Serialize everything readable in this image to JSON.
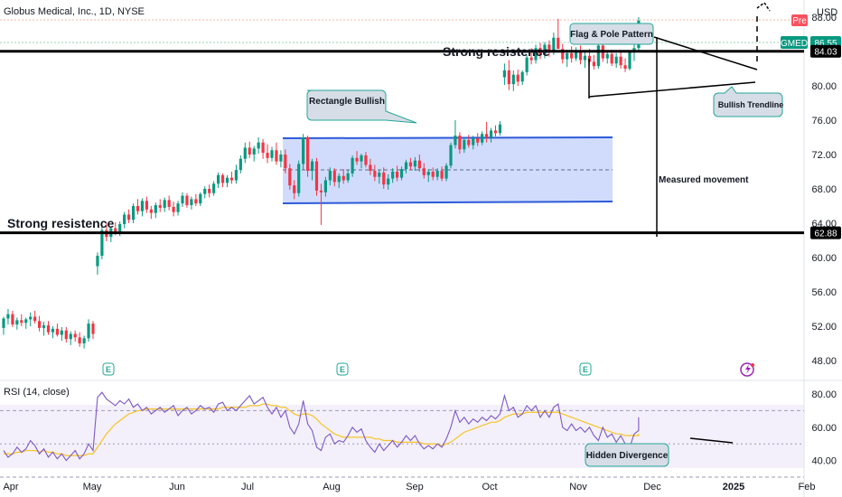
{
  "chart_data": {
    "type": "candlestick",
    "title": "Globus Medical, Inc., 1D, NYSE",
    "currency": "USD",
    "ticker_tag": "GMED",
    "last_price": "86.55",
    "pre_label": "Pre",
    "ylim": [
      46,
      90
    ],
    "y_ticks": [
      "88.00",
      "84.00",
      "80.00",
      "76.00",
      "72.00",
      "68.00",
      "64.00",
      "60.00",
      "56.00",
      "52.00",
      "48.00"
    ],
    "x_months": [
      "Apr",
      "May",
      "Jun",
      "Jul",
      "Aug",
      "Sep",
      "Oct",
      "Nov",
      "Dec",
      "2025",
      "Feb"
    ],
    "resistance_levels": [
      {
        "value": 84.03,
        "label": "84.03",
        "text": "Strong resistence"
      },
      {
        "value": 62.88,
        "label": "62.88",
        "text": "Strong resistence"
      }
    ],
    "annotations": {
      "flag_pole": "Flag & Pole Pattern",
      "rectangle": "Rectangle Bullish",
      "trendline": "Bullish Trendline",
      "measured": "Measured movement",
      "divergence": "Hidden Divergence"
    },
    "candles": [
      [
        51.8,
        53.1,
        51.0,
        52.9
      ],
      [
        52.9,
        54.0,
        52.2,
        53.4
      ],
      [
        53.4,
        53.8,
        51.9,
        52.2
      ],
      [
        52.2,
        53.0,
        51.6,
        52.7
      ],
      [
        52.7,
        53.4,
        52.0,
        52.4
      ],
      [
        52.4,
        53.0,
        51.7,
        52.8
      ],
      [
        52.8,
        53.6,
        52.0,
        53.1
      ],
      [
        53.1,
        53.8,
        52.3,
        52.6
      ],
      [
        52.6,
        53.2,
        51.4,
        51.8
      ],
      [
        51.8,
        52.5,
        50.9,
        52.1
      ],
      [
        52.1,
        52.6,
        51.0,
        51.3
      ],
      [
        51.3,
        52.0,
        50.6,
        51.7
      ],
      [
        51.7,
        52.3,
        50.8,
        51.0
      ],
      [
        51.0,
        51.9,
        50.3,
        51.5
      ],
      [
        51.5,
        51.9,
        50.1,
        50.5
      ],
      [
        50.5,
        51.4,
        49.8,
        51.1
      ],
      [
        51.1,
        51.5,
        50.2,
        50.7
      ],
      [
        50.7,
        51.3,
        49.6,
        50.0
      ],
      [
        50.0,
        50.9,
        49.4,
        50.6
      ],
      [
        50.6,
        52.8,
        50.2,
        52.3
      ],
      [
        52.3,
        52.6,
        50.5,
        51.1
      ],
      [
        59.0,
        60.6,
        58.0,
        60.2
      ],
      [
        60.2,
        63.8,
        59.8,
        63.2
      ],
      [
        63.2,
        64.0,
        61.9,
        62.4
      ],
      [
        62.4,
        63.6,
        61.8,
        63.4
      ],
      [
        63.4,
        64.1,
        62.6,
        63.0
      ],
      [
        63.0,
        64.2,
        62.5,
        63.9
      ],
      [
        63.9,
        65.3,
        63.4,
        65.0
      ],
      [
        65.0,
        65.6,
        64.0,
        64.4
      ],
      [
        64.4,
        66.3,
        64.0,
        66.0
      ],
      [
        66.0,
        66.8,
        65.0,
        65.4
      ],
      [
        65.4,
        66.9,
        64.8,
        66.6
      ],
      [
        66.6,
        67.1,
        65.2,
        65.6
      ],
      [
        65.6,
        66.0,
        64.5,
        65.2
      ],
      [
        65.2,
        66.4,
        64.6,
        66.1
      ],
      [
        66.1,
        66.8,
        65.3,
        65.8
      ],
      [
        65.8,
        67.0,
        65.3,
        66.7
      ],
      [
        66.7,
        67.2,
        65.5,
        65.9
      ],
      [
        65.9,
        66.5,
        64.8,
        65.3
      ],
      [
        65.3,
        66.6,
        64.9,
        66.3
      ],
      [
        66.3,
        67.6,
        65.9,
        67.2
      ],
      [
        67.2,
        67.5,
        65.8,
        66.1
      ],
      [
        66.1,
        67.1,
        65.6,
        66.8
      ],
      [
        66.8,
        67.4,
        66.0,
        66.3
      ],
      [
        66.3,
        67.6,
        66.0,
        67.4
      ],
      [
        67.4,
        68.3,
        66.9,
        68.0
      ],
      [
        68.0,
        68.5,
        67.0,
        67.5
      ],
      [
        67.5,
        68.9,
        67.2,
        68.6
      ],
      [
        68.6,
        69.9,
        68.1,
        69.6
      ],
      [
        69.6,
        69.8,
        68.2,
        68.7
      ],
      [
        68.7,
        69.6,
        68.2,
        69.3
      ],
      [
        69.3,
        70.0,
        68.6,
        69.0
      ],
      [
        69.0,
        70.8,
        68.6,
        70.2
      ],
      [
        70.2,
        71.9,
        69.8,
        71.5
      ],
      [
        71.5,
        73.4,
        71.0,
        72.8
      ],
      [
        72.8,
        73.5,
        71.6,
        72.0
      ],
      [
        72.0,
        73.0,
        71.2,
        72.7
      ],
      [
        72.7,
        74.0,
        72.1,
        73.4
      ],
      [
        73.4,
        73.8,
        71.5,
        72.2
      ],
      [
        72.2,
        73.2,
        71.0,
        71.6
      ],
      [
        71.6,
        72.9,
        71.2,
        72.5
      ],
      [
        72.5,
        73.4,
        70.8,
        71.2
      ],
      [
        71.2,
        72.5,
        70.5,
        72.0
      ],
      [
        72.0,
        72.6,
        69.8,
        70.4
      ],
      [
        70.4,
        70.9,
        67.9,
        68.4
      ],
      [
        68.4,
        69.0,
        66.8,
        67.5
      ],
      [
        67.5,
        71.3,
        67.1,
        70.9
      ],
      [
        70.9,
        74.4,
        70.2,
        74.0
      ],
      [
        74.0,
        74.2,
        69.4,
        70.1
      ],
      [
        70.1,
        71.5,
        69.0,
        71.2
      ],
      [
        71.2,
        71.6,
        67.2,
        67.8
      ],
      [
        67.8,
        68.6,
        63.8,
        67.6
      ],
      [
        67.6,
        69.4,
        67.1,
        69.0
      ],
      [
        69.0,
        70.5,
        68.4,
        70.1
      ],
      [
        70.1,
        70.4,
        68.3,
        68.8
      ],
      [
        68.8,
        69.8,
        68.1,
        69.5
      ],
      [
        69.5,
        70.3,
        68.6,
        69.0
      ],
      [
        69.0,
        70.2,
        68.7,
        69.8
      ],
      [
        69.8,
        71.9,
        69.4,
        71.6
      ],
      [
        71.6,
        72.4,
        70.8,
        71.2
      ],
      [
        71.2,
        72.1,
        70.4,
        71.9
      ],
      [
        71.9,
        72.3,
        70.5,
        70.8
      ],
      [
        70.8,
        71.5,
        69.6,
        70.1
      ],
      [
        70.1,
        70.8,
        68.9,
        69.4
      ],
      [
        69.4,
        70.2,
        68.6,
        69.9
      ],
      [
        69.9,
        70.5,
        68.0,
        68.5
      ],
      [
        68.5,
        69.7,
        67.9,
        69.2
      ],
      [
        69.2,
        70.4,
        68.7,
        70.0
      ],
      [
        70.0,
        70.7,
        68.9,
        69.3
      ],
      [
        69.3,
        70.6,
        69.0,
        70.3
      ],
      [
        70.3,
        71.4,
        69.8,
        71.1
      ],
      [
        71.1,
        71.6,
        70.2,
        70.6
      ],
      [
        70.6,
        71.7,
        70.1,
        71.3
      ],
      [
        71.3,
        72.0,
        70.0,
        70.4
      ],
      [
        70.4,
        71.0,
        69.2,
        69.6
      ],
      [
        69.6,
        70.3,
        68.8,
        70.0
      ],
      [
        70.0,
        70.5,
        69.0,
        69.4
      ],
      [
        69.4,
        70.4,
        69.0,
        70.1
      ],
      [
        70.1,
        70.6,
        68.9,
        69.2
      ],
      [
        69.2,
        71.0,
        68.9,
        70.7
      ],
      [
        70.7,
        73.4,
        70.4,
        73.1
      ],
      [
        73.1,
        76.0,
        72.7,
        74.2
      ],
      [
        74.2,
        74.6,
        72.1,
        72.6
      ],
      [
        72.6,
        74.0,
        72.2,
        73.7
      ],
      [
        73.7,
        74.3,
        72.8,
        73.1
      ],
      [
        73.1,
        74.2,
        72.6,
        73.9
      ],
      [
        73.9,
        74.5,
        73.0,
        73.4
      ],
      [
        73.4,
        74.7,
        73.1,
        74.4
      ],
      [
        74.4,
        75.8,
        73.4,
        74.0
      ],
      [
        74.0,
        75.1,
        73.4,
        74.8
      ],
      [
        74.8,
        75.4,
        74.1,
        74.5
      ],
      [
        74.5,
        75.9,
        74.2,
        75.5
      ],
      [
        81.0,
        82.6,
        80.1,
        81.8
      ],
      [
        81.8,
        83.0,
        79.5,
        80.2
      ],
      [
        80.2,
        81.8,
        79.4,
        81.3
      ],
      [
        81.3,
        81.9,
        80.0,
        80.5
      ],
      [
        80.5,
        81.8,
        80.1,
        81.6
      ],
      [
        81.6,
        83.6,
        81.2,
        83.3
      ],
      [
        83.3,
        84.4,
        82.5,
        83.0
      ],
      [
        83.0,
        84.8,
        82.6,
        84.4
      ],
      [
        84.4,
        85.0,
        83.1,
        83.6
      ],
      [
        83.6,
        85.1,
        83.2,
        84.8
      ],
      [
        84.8,
        85.3,
        83.4,
        84.0
      ],
      [
        84.0,
        86.2,
        83.6,
        85.6
      ],
      [
        85.6,
        87.8,
        84.6,
        84.3
      ],
      [
        84.3,
        84.9,
        82.6,
        83.1
      ],
      [
        83.1,
        84.2,
        82.2,
        83.8
      ],
      [
        83.8,
        84.6,
        82.7,
        83.2
      ],
      [
        83.2,
        84.5,
        82.9,
        84.0
      ],
      [
        84.0,
        84.7,
        82.5,
        83.0
      ],
      [
        83.0,
        84.1,
        82.1,
        83.5
      ],
      [
        83.5,
        84.3,
        82.4,
        82.8
      ],
      [
        82.8,
        83.6,
        81.9,
        82.3
      ],
      [
        82.3,
        84.9,
        82.0,
        84.7
      ],
      [
        84.7,
        85.0,
        82.8,
        83.2
      ],
      [
        83.2,
        84.0,
        82.6,
        83.7
      ],
      [
        83.7,
        84.2,
        82.3,
        82.6
      ],
      [
        82.6,
        83.8,
        82.1,
        83.4
      ],
      [
        83.4,
        84.1,
        82.0,
        82.4
      ],
      [
        82.4,
        83.2,
        81.6,
        82.0
      ],
      [
        82.0,
        84.1,
        81.8,
        83.9
      ],
      [
        83.9,
        84.8,
        82.9,
        84.4
      ],
      [
        84.4,
        88.0,
        84.0,
        87.6
      ]
    ],
    "rsi": {
      "label": "RSI (14, close)",
      "ylim": [
        30,
        86
      ],
      "y_ticks": [
        "80.00",
        "60.00",
        "40.00"
      ],
      "bands": [
        70,
        50,
        30
      ],
      "values": [
        46,
        42,
        44,
        48,
        45,
        47,
        52,
        49,
        44,
        47,
        42,
        45,
        41,
        44,
        40,
        43,
        46,
        41,
        44,
        50,
        46,
        78,
        81,
        77,
        75,
        73,
        76,
        74,
        77,
        72,
        74,
        70,
        72,
        68,
        70,
        72,
        69,
        71,
        73,
        67,
        70,
        72,
        68,
        70,
        73,
        71,
        72,
        69,
        74,
        75,
        70,
        72,
        70,
        73,
        76,
        79,
        74,
        76,
        78,
        72,
        68,
        72,
        66,
        70,
        60,
        56,
        62,
        76,
        62,
        58,
        48,
        46,
        54,
        56,
        50,
        52,
        51,
        55,
        60,
        57,
        59,
        52,
        48,
        45,
        50,
        46,
        49,
        52,
        48,
        51,
        55,
        52,
        55,
        50,
        47,
        49,
        47,
        50,
        48,
        53,
        60,
        70,
        63,
        66,
        62,
        65,
        63,
        66,
        64,
        67,
        65,
        68,
        79,
        70,
        72,
        66,
        68,
        73,
        70,
        73,
        66,
        70,
        66,
        72,
        74,
        60,
        58,
        62,
        58,
        60,
        57,
        60,
        55,
        52,
        60,
        54,
        56,
        51,
        55,
        50,
        48,
        56,
        58,
        66
      ],
      "ma": [
        44,
        44,
        44,
        45,
        45,
        46,
        46,
        46,
        45,
        46,
        45,
        45,
        44,
        44,
        43,
        43,
        43,
        43,
        43,
        44,
        44,
        48,
        52,
        56,
        59,
        62,
        64,
        66,
        68,
        69,
        70,
        70,
        71,
        71,
        71,
        71,
        71,
        71,
        71,
        71,
        71,
        71,
        71,
        71,
        71,
        71,
        71,
        71,
        71,
        72,
        72,
        72,
        72,
        72,
        72,
        73,
        73,
        73,
        74,
        74,
        73,
        73,
        72,
        72,
        70,
        68,
        67,
        68,
        68,
        67,
        65,
        62,
        60,
        58,
        56,
        55,
        54,
        54,
        54,
        54,
        54,
        54,
        54,
        53,
        53,
        52,
        52,
        52,
        51,
        51,
        51,
        51,
        51,
        51,
        50,
        50,
        50,
        50,
        49,
        50,
        51,
        53,
        55,
        57,
        58,
        59,
        60,
        61,
        62,
        63,
        63,
        64,
        66,
        67,
        68,
        68,
        68,
        69,
        69,
        69,
        69,
        69,
        69,
        69,
        69,
        68,
        67,
        66,
        65,
        64,
        63,
        62,
        61,
        60,
        59,
        58,
        57,
        56,
        56,
        55,
        55,
        55,
        55,
        56
      ]
    }
  }
}
